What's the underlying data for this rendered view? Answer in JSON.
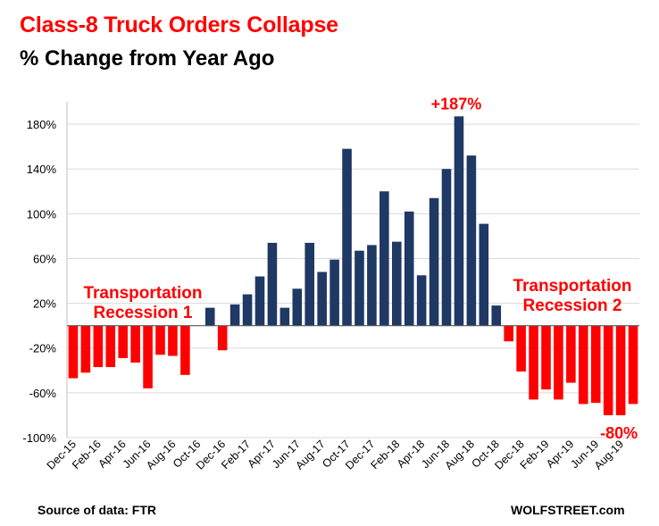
{
  "chart_data": {
    "type": "bar",
    "title": "Class-8 Truck Orders Collapse",
    "subtitle": "% Change from Year Ago",
    "xlabel": "",
    "ylabel": "",
    "ylim": [
      -100,
      200
    ],
    "yticks": [
      -100,
      -60,
      -20,
      20,
      60,
      100,
      140,
      180
    ],
    "ytick_labels": [
      "-100%",
      "-60%",
      "-20%",
      "20%",
      "60%",
      "100%",
      "140%",
      "180%"
    ],
    "grid": true,
    "positive_color": "#1f3864",
    "negative_color": "#ff0000",
    "categories": [
      "Dec-15",
      "Jan-16",
      "Feb-16",
      "Mar-16",
      "Apr-16",
      "May-16",
      "Jun-16",
      "Jul-16",
      "Aug-16",
      "Sep-16",
      "Oct-16",
      "Nov-16",
      "Dec-16",
      "Jan-17",
      "Feb-17",
      "Mar-17",
      "Apr-17",
      "May-17",
      "Jun-17",
      "Jul-17",
      "Aug-17",
      "Sep-17",
      "Oct-17",
      "Nov-17",
      "Dec-17",
      "Jan-18",
      "Feb-18",
      "Mar-18",
      "Apr-18",
      "May-18",
      "Jun-18",
      "Jul-18",
      "Aug-18",
      "Sep-18",
      "Oct-18",
      "Nov-18",
      "Dec-18",
      "Jan-19",
      "Feb-19",
      "Mar-19",
      "Apr-19",
      "May-19",
      "Jun-19",
      "Jul-19",
      "Aug-19",
      "Sep-19"
    ],
    "visible_tick_labels": [
      "Dec-15",
      "Feb-16",
      "Apr-16",
      "Jun-16",
      "Aug-16",
      "Oct-16",
      "Dec-16",
      "Feb-17",
      "Apr-17",
      "Jun-17",
      "Aug-17",
      "Oct-17",
      "Dec-17",
      "Feb-18",
      "Apr-18",
      "Jun-18",
      "Aug-18",
      "Oct-18",
      "Dec-18",
      "Feb-19",
      "Apr-19",
      "Jun-19",
      "Aug-19"
    ],
    "values": [
      -47,
      -42,
      -37,
      -37,
      -29,
      -33,
      -56,
      -26,
      -27,
      -44,
      0,
      16,
      -22,
      19,
      28,
      44,
      74,
      16,
      33,
      74,
      48,
      59,
      158,
      67,
      72,
      120,
      75,
      102,
      45,
      114,
      140,
      187,
      152,
      91,
      18,
      -14,
      -41,
      -66,
      -57,
      -66,
      -51,
      -70,
      -69,
      -80,
      -80,
      -70
    ],
    "annotations": {
      "peak_label": "+187%",
      "end_label": "-80%",
      "recession1_line1": "Transportation",
      "recession1_line2": "Recession 1",
      "recession2_line1": "Transportation",
      "recession2_line2": "Recession 2"
    }
  },
  "footer": {
    "source": "Source of data: FTR",
    "brand": "WOLFSTREET.com"
  }
}
